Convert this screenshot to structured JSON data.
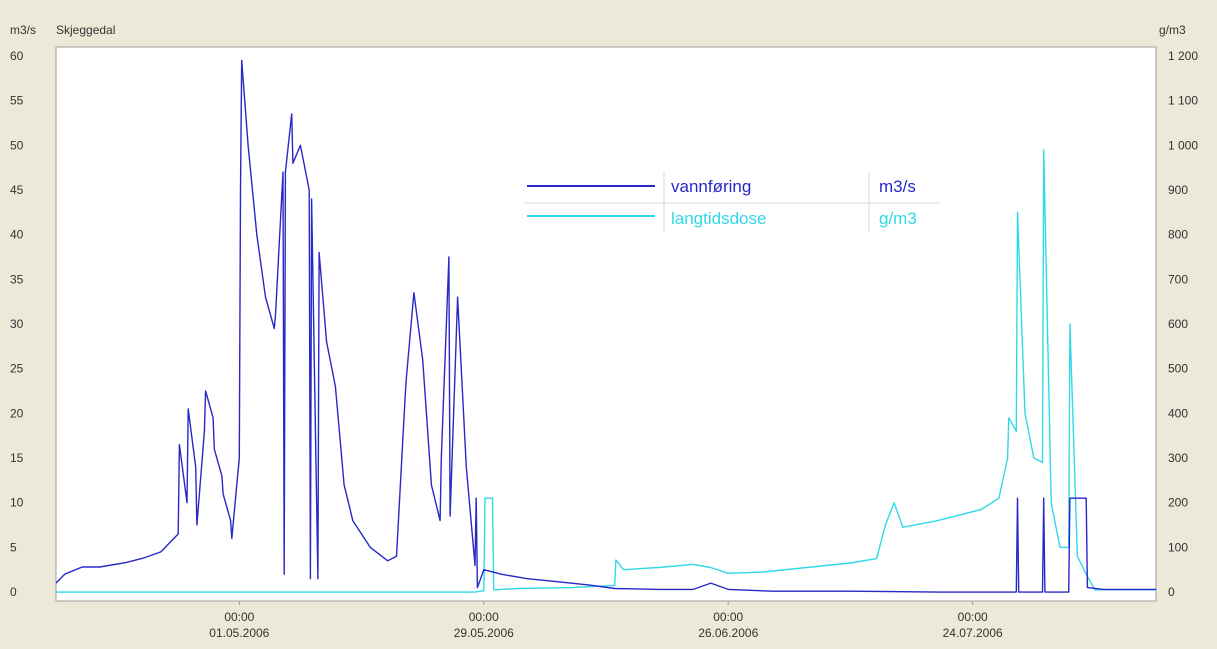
{
  "chart_data": {
    "type": "line",
    "title": "Skjeggedal",
    "y_left_unit": "m3/s",
    "y_right_unit": "g/m3",
    "ylim_left": [
      -1,
      61
    ],
    "ylim_right": [
      -20,
      1220
    ],
    "y_left_ticks": [
      "0",
      "5",
      "10",
      "15",
      "20",
      "25",
      "30",
      "35",
      "40",
      "45",
      "50",
      "55",
      "60"
    ],
    "y_right_ticks": [
      "0",
      "100",
      "200",
      "300",
      "400",
      "500",
      "600",
      "700",
      "800",
      "900",
      "1 000",
      "1 100",
      "1 200"
    ],
    "x_range_days": [
      "2006-04-10",
      "2006-08-14"
    ],
    "x_ticks": [
      {
        "date": "2006-05-01",
        "time": "00:00",
        "label": "01.05.2006"
      },
      {
        "date": "2006-05-29",
        "time": "00:00",
        "label": "29.05.2006"
      },
      {
        "date": "2006-06-26",
        "time": "00:00",
        "label": "26.06.2006"
      },
      {
        "date": "2006-07-24",
        "time": "00:00",
        "label": "24.07.2006"
      }
    ],
    "grid": false,
    "legend_placement": "top-center",
    "series": [
      {
        "name": "vannføring",
        "unit": "m3/s",
        "axis": "left",
        "color": "#2828c8",
        "points": [
          [
            "2006-04-10",
            1.0
          ],
          [
            "2006-04-11",
            2.0
          ],
          [
            "2006-04-13",
            2.8
          ],
          [
            "2006-04-15",
            2.8
          ],
          [
            "2006-04-18",
            3.3
          ],
          [
            "2006-04-20",
            3.8
          ],
          [
            "2006-04-22",
            4.5
          ],
          [
            "2006-04-24",
            6.5
          ],
          [
            "2006-04-24",
            16.5
          ],
          [
            "2006-04-25",
            10.0
          ],
          [
            "2006-04-25",
            20.5
          ],
          [
            "2006-04-26",
            14.0
          ],
          [
            "2006-04-26",
            7.5
          ],
          [
            "2006-04-27",
            18.0
          ],
          [
            "2006-04-27",
            22.5
          ],
          [
            "2006-04-28",
            19.5
          ],
          [
            "2006-04-28",
            16.0
          ],
          [
            "2006-04-29",
            13.0
          ],
          [
            "2006-04-29",
            11.0
          ],
          [
            "2006-04-30",
            8.0
          ],
          [
            "2006-04-30",
            6.0
          ],
          [
            "2006-05-01",
            15.0
          ],
          [
            "2006-05-01",
            45.0
          ],
          [
            "2006-05-01",
            59.5
          ],
          [
            "2006-05-02",
            50.0
          ],
          [
            "2006-05-03",
            40.0
          ],
          [
            "2006-05-04",
            33.0
          ],
          [
            "2006-05-05",
            29.5
          ],
          [
            "2006-05-05",
            31.0
          ],
          [
            "2006-05-06",
            47.0
          ],
          [
            "2006-05-06",
            2.0
          ],
          [
            "2006-05-06",
            47.0
          ],
          [
            "2006-05-07",
            53.5
          ],
          [
            "2006-05-07",
            48.0
          ],
          [
            "2006-05-08",
            50.0
          ],
          [
            "2006-05-09",
            45.0
          ],
          [
            "2006-05-09",
            1.5
          ],
          [
            "2006-05-09",
            44.0
          ],
          [
            "2006-05-10",
            1.5
          ],
          [
            "2006-05-10",
            38.0
          ],
          [
            "2006-05-11",
            28.0
          ],
          [
            "2006-05-12",
            23.0
          ],
          [
            "2006-05-13",
            12.0
          ],
          [
            "2006-05-14",
            8.0
          ],
          [
            "2006-05-16",
            5.0
          ],
          [
            "2006-05-18",
            3.5
          ],
          [
            "2006-05-19",
            4.0
          ],
          [
            "2006-05-20",
            22.0
          ],
          [
            "2006-05-20",
            24.0
          ],
          [
            "2006-05-21",
            33.5
          ],
          [
            "2006-05-22",
            26.0
          ],
          [
            "2006-05-23",
            12.0
          ],
          [
            "2006-05-24",
            8.0
          ],
          [
            "2006-05-24",
            15.0
          ],
          [
            "2006-05-25",
            37.5
          ],
          [
            "2006-05-25",
            8.5
          ],
          [
            "2006-05-26",
            33.0
          ],
          [
            "2006-05-27",
            14.0
          ],
          [
            "2006-05-28",
            3.0
          ],
          [
            "2006-05-28",
            10.5
          ],
          [
            "2006-05-28",
            0.5
          ],
          [
            "2006-05-29",
            2.5
          ],
          [
            "2006-05-31",
            2.0
          ],
          [
            "2006-06-03",
            1.5
          ],
          [
            "2006-06-06",
            1.2
          ],
          [
            "2006-06-10",
            0.8
          ],
          [
            "2006-06-13",
            0.4
          ],
          [
            "2006-06-18",
            0.3
          ],
          [
            "2006-06-22",
            0.3
          ],
          [
            "2006-06-24",
            1.0
          ],
          [
            "2006-06-26",
            0.3
          ],
          [
            "2006-07-01",
            0.1
          ],
          [
            "2006-07-10",
            0.1
          ],
          [
            "2006-07-20",
            0.0
          ],
          [
            "2006-07-28",
            0.0
          ],
          [
            "2006-07-29",
            0.0
          ],
          [
            "2006-07-29",
            10.5
          ],
          [
            "2006-07-29",
            0.0
          ],
          [
            "2006-08-01",
            0.0
          ],
          [
            "2006-08-01",
            10.5
          ],
          [
            "2006-08-01",
            0.0
          ],
          [
            "2006-08-04",
            0.0
          ],
          [
            "2006-08-04",
            10.5
          ],
          [
            "2006-08-06",
            10.5
          ],
          [
            "2006-08-06",
            0.5
          ],
          [
            "2006-08-08",
            0.3
          ],
          [
            "2006-08-14",
            0.3
          ]
        ]
      },
      {
        "name": "langtidsdose",
        "unit": "g/m3",
        "axis": "right",
        "color": "#30d8e8",
        "points": [
          [
            "2006-04-10",
            0
          ],
          [
            "2006-05-28",
            0
          ],
          [
            "2006-05-29",
            3
          ],
          [
            "2006-05-29",
            210
          ],
          [
            "2006-05-30",
            210
          ],
          [
            "2006-05-30",
            5
          ],
          [
            "2006-06-02",
            8
          ],
          [
            "2006-06-08",
            10
          ],
          [
            "2006-06-13",
            15
          ],
          [
            "2006-06-13",
            72
          ],
          [
            "2006-06-14",
            50
          ],
          [
            "2006-06-18",
            55
          ],
          [
            "2006-06-22",
            62
          ],
          [
            "2006-06-24",
            55
          ],
          [
            "2006-06-26",
            42
          ],
          [
            "2006-06-30",
            45
          ],
          [
            "2006-07-05",
            55
          ],
          [
            "2006-07-10",
            65
          ],
          [
            "2006-07-13",
            75
          ],
          [
            "2006-07-14",
            150
          ],
          [
            "2006-07-15",
            200
          ],
          [
            "2006-07-16",
            145
          ],
          [
            "2006-07-20",
            160
          ],
          [
            "2006-07-25",
            185
          ],
          [
            "2006-07-27",
            210
          ],
          [
            "2006-07-28",
            300
          ],
          [
            "2006-07-28",
            390
          ],
          [
            "2006-07-29",
            360
          ],
          [
            "2006-07-29",
            850
          ],
          [
            "2006-07-30",
            400
          ],
          [
            "2006-07-31",
            300
          ],
          [
            "2006-08-01",
            290
          ],
          [
            "2006-08-01",
            990
          ],
          [
            "2006-08-02",
            200
          ],
          [
            "2006-08-03",
            100
          ],
          [
            "2006-08-04",
            100
          ],
          [
            "2006-08-04",
            600
          ],
          [
            "2006-08-05",
            80
          ],
          [
            "2006-08-06",
            40
          ],
          [
            "2006-08-07",
            5
          ],
          [
            "2006-08-10",
            5
          ],
          [
            "2006-08-14",
            5
          ]
        ]
      }
    ]
  }
}
